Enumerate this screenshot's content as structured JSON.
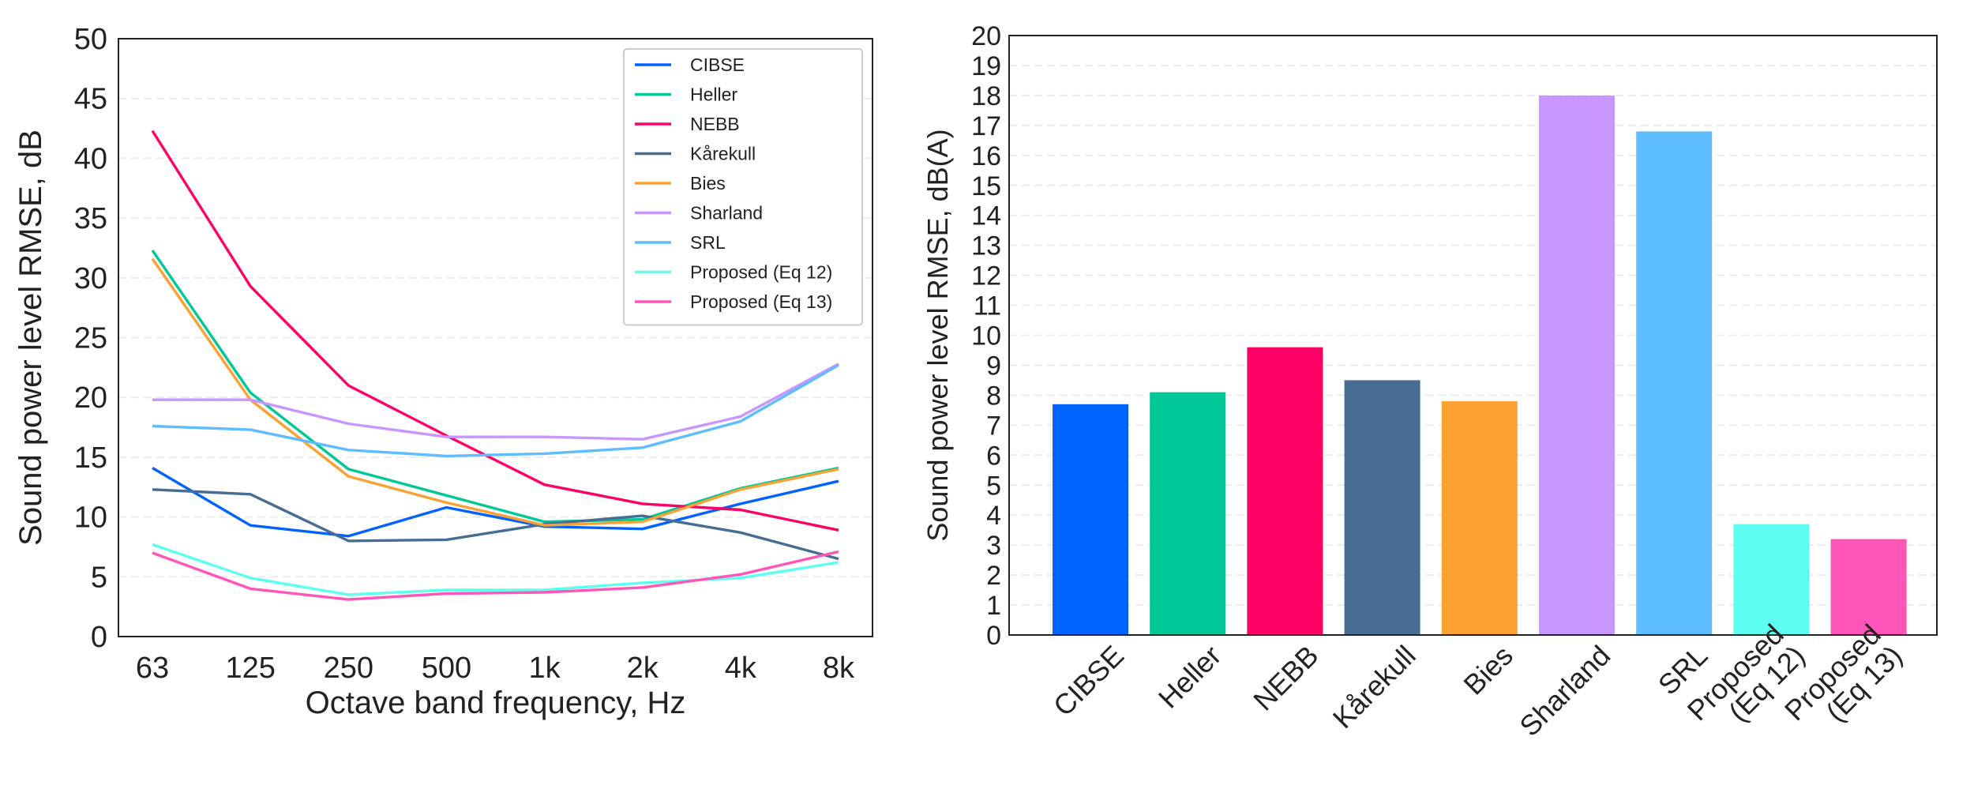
{
  "chart_data": [
    {
      "type": "line",
      "xlabel": "Octave band frequency, Hz",
      "ylabel": "Sound power level RMSE, dB",
      "categories": [
        "63",
        "125",
        "250",
        "500",
        "1k",
        "2k",
        "4k",
        "8k"
      ],
      "ylim": [
        0,
        50
      ],
      "yticks": [
        "0",
        "5",
        "10",
        "15",
        "20",
        "25",
        "30",
        "35",
        "40",
        "45",
        "50"
      ],
      "grid": "horizontal dashed",
      "legend_position": "top-right",
      "series": [
        {
          "name": "CIBSE",
          "color": "#0062ff",
          "values": [
            14.1,
            9.3,
            8.4,
            10.8,
            9.2,
            9.0,
            11.1,
            13.0
          ]
        },
        {
          "name": "Heller",
          "color": "#00c896",
          "values": [
            32.3,
            20.4,
            14.0,
            11.8,
            9.6,
            9.8,
            12.4,
            14.1
          ]
        },
        {
          "name": "NEBB",
          "color": "#ff0066",
          "values": [
            42.3,
            29.3,
            21.0,
            16.8,
            12.7,
            11.1,
            10.6,
            8.9
          ]
        },
        {
          "name": "Kårekull",
          "color": "#476d94",
          "values": [
            12.3,
            11.9,
            8.0,
            8.1,
            9.4,
            10.1,
            8.7,
            6.5
          ]
        },
        {
          "name": "Bies",
          "color": "#f9a233",
          "values": [
            31.6,
            19.8,
            13.4,
            11.2,
            9.3,
            9.6,
            12.3,
            14.0
          ]
        },
        {
          "name": "Sharland",
          "color": "#c896ff",
          "values": [
            19.8,
            19.8,
            17.8,
            16.7,
            16.7,
            16.5,
            18.4,
            22.8
          ]
        },
        {
          "name": "SRL",
          "color": "#5ebdff",
          "values": [
            17.6,
            17.3,
            15.6,
            15.1,
            15.3,
            15.8,
            18.0,
            22.7
          ]
        },
        {
          "name": "Proposed (Eq 12)",
          "color": "#5cfff0",
          "values": [
            7.7,
            4.9,
            3.5,
            3.9,
            3.9,
            4.5,
            4.9,
            6.2
          ]
        },
        {
          "name": "Proposed (Eq 13)",
          "color": "#ff55b8",
          "values": [
            7.0,
            4.0,
            3.1,
            3.6,
            3.7,
            4.1,
            5.2,
            7.1
          ]
        }
      ]
    },
    {
      "type": "bar",
      "xlabel": "",
      "ylabel": "Sound power level RMSE, dB(A)",
      "categories": [
        "CIBSE",
        "Heller",
        "NEBB",
        "Kårekull",
        "Bies",
        "Sharland",
        "SRL",
        "Proposed (Eq 12)",
        "Proposed (Eq 13)"
      ],
      "category_lines": [
        [
          "CIBSE"
        ],
        [
          "Heller"
        ],
        [
          "NEBB"
        ],
        [
          "Kårekull"
        ],
        [
          "Bies"
        ],
        [
          "Sharland"
        ],
        [
          "SRL"
        ],
        [
          "Proposed",
          "(Eq 12)"
        ],
        [
          "Proposed",
          "(Eq 13)"
        ]
      ],
      "values": [
        7.7,
        8.1,
        9.6,
        8.5,
        7.8,
        18.0,
        16.8,
        3.7,
        3.2
      ],
      "colors": [
        "#0062ff",
        "#00c896",
        "#ff0066",
        "#476d94",
        "#f9a233",
        "#c896ff",
        "#5ebdff",
        "#5cfff0",
        "#ff55b8"
      ],
      "ylim": [
        0,
        20
      ],
      "yticks": [
        "0",
        "1",
        "2",
        "3",
        "4",
        "5",
        "6",
        "7",
        "8",
        "9",
        "10",
        "11",
        "12",
        "13",
        "14",
        "15",
        "16",
        "17",
        "18",
        "19",
        "20"
      ],
      "grid": "horizontal dashed"
    }
  ]
}
